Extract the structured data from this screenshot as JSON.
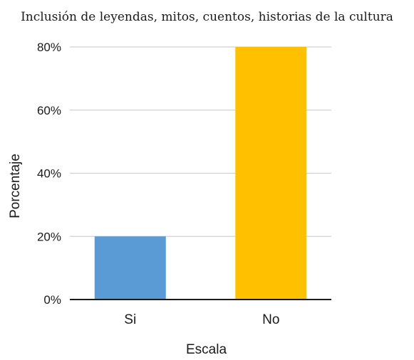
{
  "chart_data": {
    "type": "bar",
    "title": "Inclusión de leyendas, mitos, cuentos, historias de la cultura",
    "xlabel": "Escala",
    "ylabel": "Porcentaje",
    "categories": [
      "Si",
      "No"
    ],
    "values": [
      20,
      80
    ],
    "colors": [
      "#5b9bd5",
      "#ffc000"
    ],
    "ylim": [
      0,
      80
    ],
    "yticks": [
      0,
      20,
      40,
      60,
      80
    ],
    "ytick_labels": [
      "0%",
      "20%",
      "40%",
      "60%",
      "80%"
    ],
    "grid": true,
    "legend": "none"
  }
}
